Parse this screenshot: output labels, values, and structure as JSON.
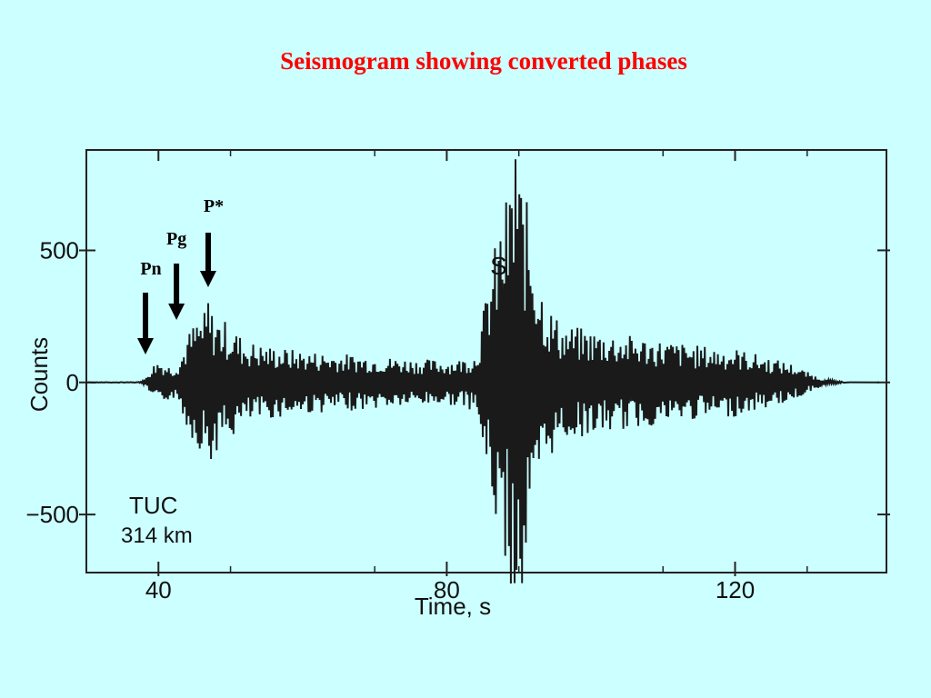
{
  "slide": {
    "title": "Seismogram showing converted phases"
  },
  "chart_data": {
    "type": "line",
    "title": "",
    "xlabel": "Time, s",
    "ylabel": "Counts",
    "xlim": [
      30,
      141
    ],
    "ylim": [
      -720,
      880
    ],
    "x_ticks": [
      40,
      80,
      120
    ],
    "y_ticks": [
      500,
      0,
      -500
    ],
    "grid": false,
    "station": "TUC",
    "distance": "314 km",
    "phase_labels": [
      {
        "label": "Pn",
        "time": 38.2
      },
      {
        "label": "Pg",
        "time": 42.5
      },
      {
        "label": "P*",
        "time": 46.9
      },
      {
        "label": "S",
        "time": 87.2
      }
    ],
    "series": [
      {
        "envelope": [
          [
            30,
            0
          ],
          [
            37,
            2
          ],
          [
            38,
            8
          ],
          [
            39,
            60
          ],
          [
            40,
            90
          ],
          [
            41,
            70
          ],
          [
            42,
            60
          ],
          [
            43,
            90
          ],
          [
            44,
            180
          ],
          [
            45,
            230
          ],
          [
            46,
            260
          ],
          [
            47,
            280
          ],
          [
            48,
            260
          ],
          [
            50,
            220
          ],
          [
            52,
            160
          ],
          [
            55,
            140
          ],
          [
            60,
            120
          ],
          [
            65,
            110
          ],
          [
            70,
            100
          ],
          [
            75,
            90
          ],
          [
            80,
            85
          ],
          [
            82,
            90
          ],
          [
            84,
            110
          ],
          [
            85,
            260
          ],
          [
            86,
            430
          ],
          [
            87,
            560
          ],
          [
            88,
            680
          ],
          [
            89,
            780
          ],
          [
            90,
            820
          ],
          [
            91,
            700
          ],
          [
            92,
            560
          ],
          [
            93,
            400
          ],
          [
            94,
            300
          ],
          [
            96,
            220
          ],
          [
            100,
            200
          ],
          [
            105,
            180
          ],
          [
            110,
            160
          ],
          [
            115,
            140
          ],
          [
            120,
            130
          ],
          [
            124,
            100
          ],
          [
            128,
            70
          ],
          [
            130,
            40
          ],
          [
            132,
            15
          ],
          [
            134,
            5
          ],
          [
            136,
            0
          ],
          [
            141,
            0
          ]
        ],
        "peaks": [
          {
            "time": 47.0,
            "value": 300
          },
          {
            "time": 47.2,
            "value": -290
          },
          {
            "time": 89.5,
            "value": 845
          },
          {
            "time": 89.3,
            "value": -760
          },
          {
            "time": 90.5,
            "value": -760
          },
          {
            "time": 88.5,
            "value": -620
          }
        ]
      }
    ]
  }
}
